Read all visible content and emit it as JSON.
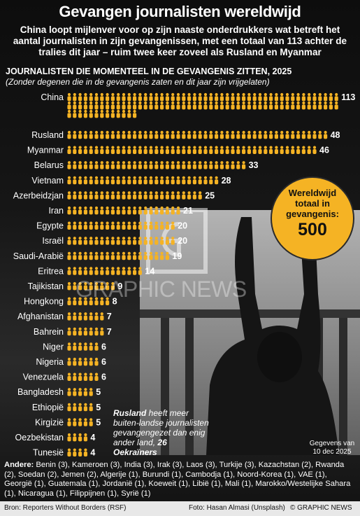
{
  "header": {
    "title": "Gevangen journalisten wereldwijd",
    "subtitle": "China loopt mijlenver voor op zijn naaste onderdrukkers wat betreft het aantal journalisten in zijn gevangenissen, met een totaal van 113 achter de tralies dit jaar – ruim twee keer zoveel als Rusland en Myanmar"
  },
  "chart_data": {
    "type": "bar",
    "title": "JOURNALISTEN DIE MOMENTEEL IN DE GEVANGENIS ZITTEN, 2025",
    "note": "(Zonder degenen die in de gevangenis zaten en dit jaar zijn vrijgelaten)",
    "categories": [
      "China",
      "Rusland",
      "Myanmar",
      "Belarus",
      "Vietnam",
      "Azerbeidzjan",
      "Iran",
      "Egypte",
      "Israël",
      "Saudi-Arabië",
      "Eritrea",
      "Tajikistan",
      "Hongkong",
      "Afghanistan",
      "Bahrein",
      "Niger",
      "Nigeria",
      "Venezuela",
      "Bangladesh",
      "Ethiopië",
      "Kirgizië",
      "Oezbekistan",
      "Tunesië"
    ],
    "values": [
      113,
      48,
      46,
      33,
      28,
      25,
      21,
      20,
      20,
      19,
      14,
      9,
      8,
      7,
      7,
      6,
      6,
      6,
      5,
      5,
      5,
      4,
      4
    ],
    "value_labels": [
      "113",
      "48",
      "46",
      "33",
      "28",
      "25",
      "21",
      "20",
      "20",
      "19",
      "14",
      "9",
      "8",
      "7",
      "7",
      "6",
      "6",
      "6",
      "5",
      "5",
      "5",
      "4",
      "4"
    ],
    "bar_color": "#f5b324"
  },
  "badge": {
    "line1": "Wereldwijd",
    "line2": "totaal in",
    "line3": "gevangenis:",
    "number": "500"
  },
  "watermark": "GRAPHIC NEWS",
  "callout": {
    "bold": "Rusland",
    "text": " heeft meer buiten-landse journalisten gevangengezet dan enig ander land, ",
    "bold2": "26 Oekraïners"
  },
  "date_note": {
    "line1": "Gegevens van",
    "line2": "10 dec 2025"
  },
  "others": {
    "label": "Andere:",
    "text": " Benin (3), Kameroen (3), India (3), Irak (3), Laos (3), Turkije (3), Kazachstan (2), Rwanda (2), Soedan (2), Jemen (2), Algerije (1), Burundi (1), Cambodja (1), Noord-Korea (1), VAE (1), Georgië (1), Guatemala (1), Jordanië (1), Koeweit (1), Libië (1), Mali (1), Marokko/Westelijke Sahara (1), Nicaragua (1), Filippijnen (1), Syrië (1)"
  },
  "footer": {
    "source": "Bron: Reporters Without Borders (RSF)",
    "photo": "Foto: Hasan Almasi (Unsplash)",
    "copyright": "© GRAPHIC NEWS"
  }
}
